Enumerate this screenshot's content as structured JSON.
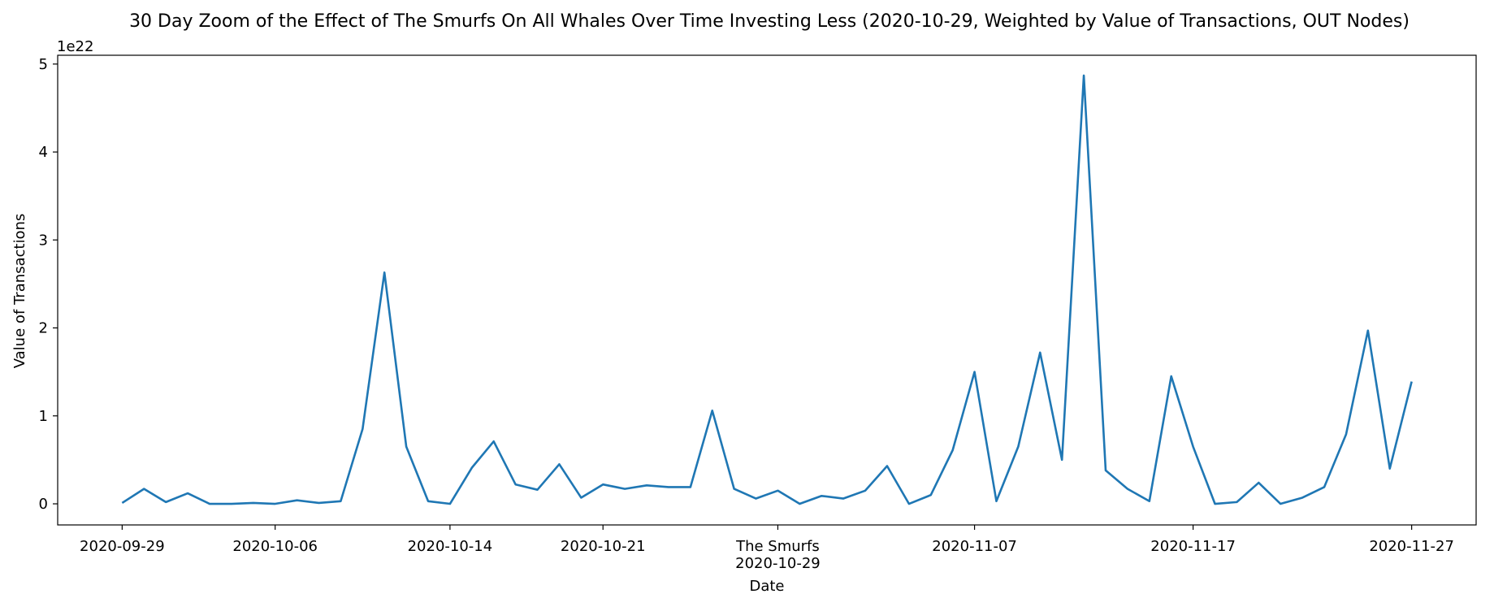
{
  "chart_data": {
    "type": "line",
    "title": "30 Day Zoom of the Effect of The Smurfs On All Whales Over Time Investing Less (2020-10-29, Weighted by Value of Transactions, OUT Nodes)",
    "xlabel": "Date",
    "ylabel": "Value of Transactions",
    "y_scale_label": "1e22",
    "y_multiplier": 1e+22,
    "ylim": [
      -0.24,
      5.1
    ],
    "y_ticks": [
      0,
      1,
      2,
      3,
      4,
      5
    ],
    "y_tick_labels": [
      "0",
      "1",
      "2",
      "3",
      "4",
      "5"
    ],
    "x_ticks": [
      {
        "date": "2020-09-29",
        "label": "2020-09-29"
      },
      {
        "date": "2020-10-06",
        "label": "2020-10-06"
      },
      {
        "date": "2020-10-14",
        "label": "2020-10-14"
      },
      {
        "date": "2020-10-21",
        "label": "2020-10-21"
      },
      {
        "date": "2020-10-29",
        "label": "The Smurfs\n2020-10-29"
      },
      {
        "date": "2020-11-07",
        "label": "2020-11-07"
      },
      {
        "date": "2020-11-17",
        "label": "2020-11-17"
      },
      {
        "date": "2020-11-27",
        "label": "2020-11-27"
      }
    ],
    "grid": false,
    "line_color": "#1f77b4",
    "series": [
      {
        "x": [
          "2020-09-29",
          "2020-09-30",
          "2020-10-01",
          "2020-10-02",
          "2020-10-03",
          "2020-10-04",
          "2020-10-05",
          "2020-10-06",
          "2020-10-07",
          "2020-10-08",
          "2020-10-09",
          "2020-10-10",
          "2020-10-11",
          "2020-10-12",
          "2020-10-13",
          "2020-10-14",
          "2020-10-15",
          "2020-10-16",
          "2020-10-17",
          "2020-10-18",
          "2020-10-19",
          "2020-10-20",
          "2020-10-21",
          "2020-10-22",
          "2020-10-23",
          "2020-10-24",
          "2020-10-25",
          "2020-10-26",
          "2020-10-27",
          "2020-10-28",
          "2020-10-29",
          "2020-10-30",
          "2020-10-31",
          "2020-11-01",
          "2020-11-02",
          "2020-11-03",
          "2020-11-04",
          "2020-11-05",
          "2020-11-06",
          "2020-11-07",
          "2020-11-08",
          "2020-11-09",
          "2020-11-10",
          "2020-11-11",
          "2020-11-12",
          "2020-11-13",
          "2020-11-14",
          "2020-11-15",
          "2020-11-16",
          "2020-11-17",
          "2020-11-18",
          "2020-11-19",
          "2020-11-20",
          "2020-11-21",
          "2020-11-22",
          "2020-11-23",
          "2020-11-24",
          "2020-11-25",
          "2020-11-26",
          "2020-11-27"
        ],
        "values": [
          0.01,
          0.17,
          0.02,
          0.12,
          0.0,
          0.0,
          0.01,
          0.0,
          0.04,
          0.01,
          0.03,
          0.85,
          2.63,
          0.65,
          0.03,
          0.0,
          0.41,
          0.71,
          0.22,
          0.16,
          0.45,
          0.07,
          0.22,
          0.17,
          0.21,
          0.19,
          0.19,
          1.06,
          0.17,
          0.06,
          0.15,
          0.0,
          0.09,
          0.06,
          0.15,
          0.43,
          0.0,
          0.1,
          0.61,
          1.5,
          0.03,
          0.65,
          1.72,
          0.5,
          4.87,
          0.38,
          0.17,
          0.03,
          1.45,
          0.65,
          0.0,
          0.02,
          0.24,
          0.0,
          0.07,
          0.19,
          0.79,
          1.97,
          0.4,
          1.39
        ]
      }
    ]
  }
}
